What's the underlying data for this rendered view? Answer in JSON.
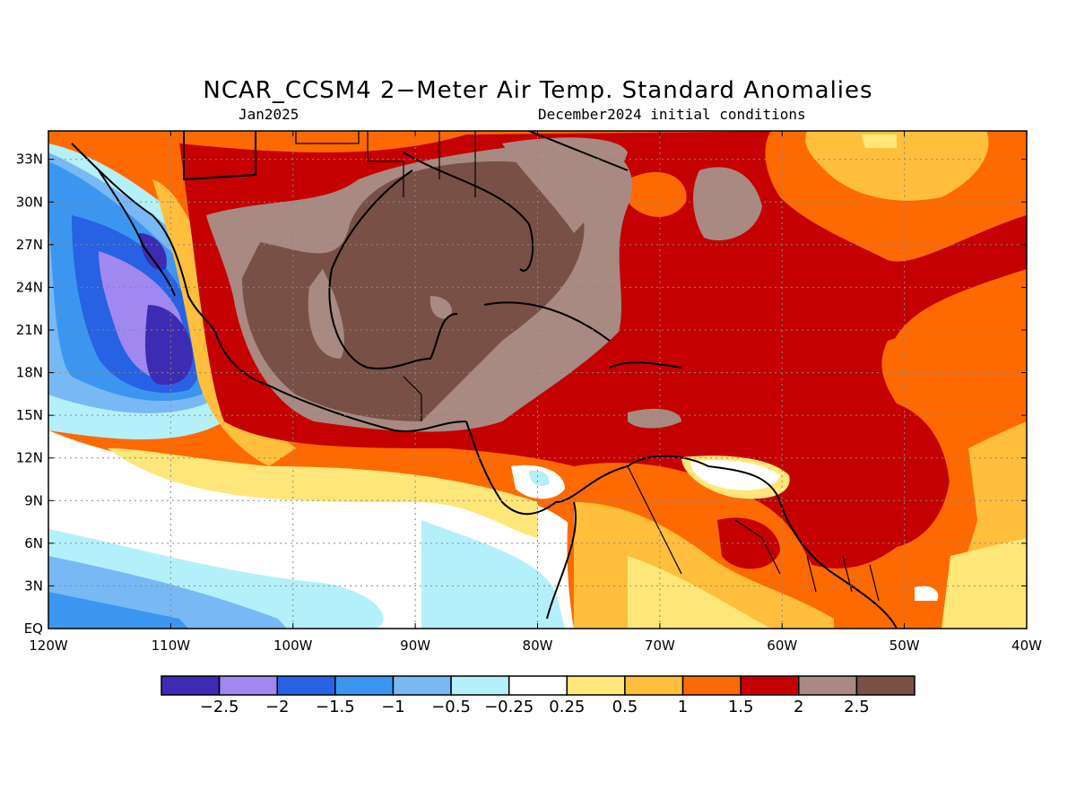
{
  "title": "NCAR_CCSM4 2−Meter Air Temp. Standard Anomalies",
  "subtitle_left": "Jan2025",
  "subtitle_right": "December2024 initial conditions",
  "map": {
    "lon_range": [
      -120,
      -40
    ],
    "lat_range": [
      0,
      35
    ],
    "lon_ticks": [
      "120W",
      "110W",
      "100W",
      "90W",
      "80W",
      "70W",
      "60W",
      "50W",
      "40W"
    ],
    "lat_ticks": [
      "33N",
      "30N",
      "27N",
      "24N",
      "21N",
      "18N",
      "15N",
      "12N",
      "9N",
      "6N",
      "3N",
      "EQ"
    ],
    "lat_values": [
      33,
      30,
      27,
      24,
      21,
      18,
      15,
      12,
      9,
      6,
      3,
      0
    ],
    "lon_values": [
      -120,
      -110,
      -100,
      -90,
      -80,
      -70,
      -60,
      -50,
      -40
    ]
  },
  "colorbar": {
    "labels": [
      "−2.5",
      "−2",
      "−1.5",
      "−1",
      "−0.5",
      "−0.25",
      "0.25",
      "0.5",
      "1",
      "1.5",
      "2",
      "2.5"
    ],
    "colors": [
      "#3d2bb3",
      "#a088f0",
      "#2662e3",
      "#3c96f0",
      "#78b8f5",
      "#b4f0fa",
      "#ffffff",
      "#ffe678",
      "#ffbe3c",
      "#ff6a00",
      "#c40000",
      "#a88a82",
      "#785046"
    ]
  }
}
